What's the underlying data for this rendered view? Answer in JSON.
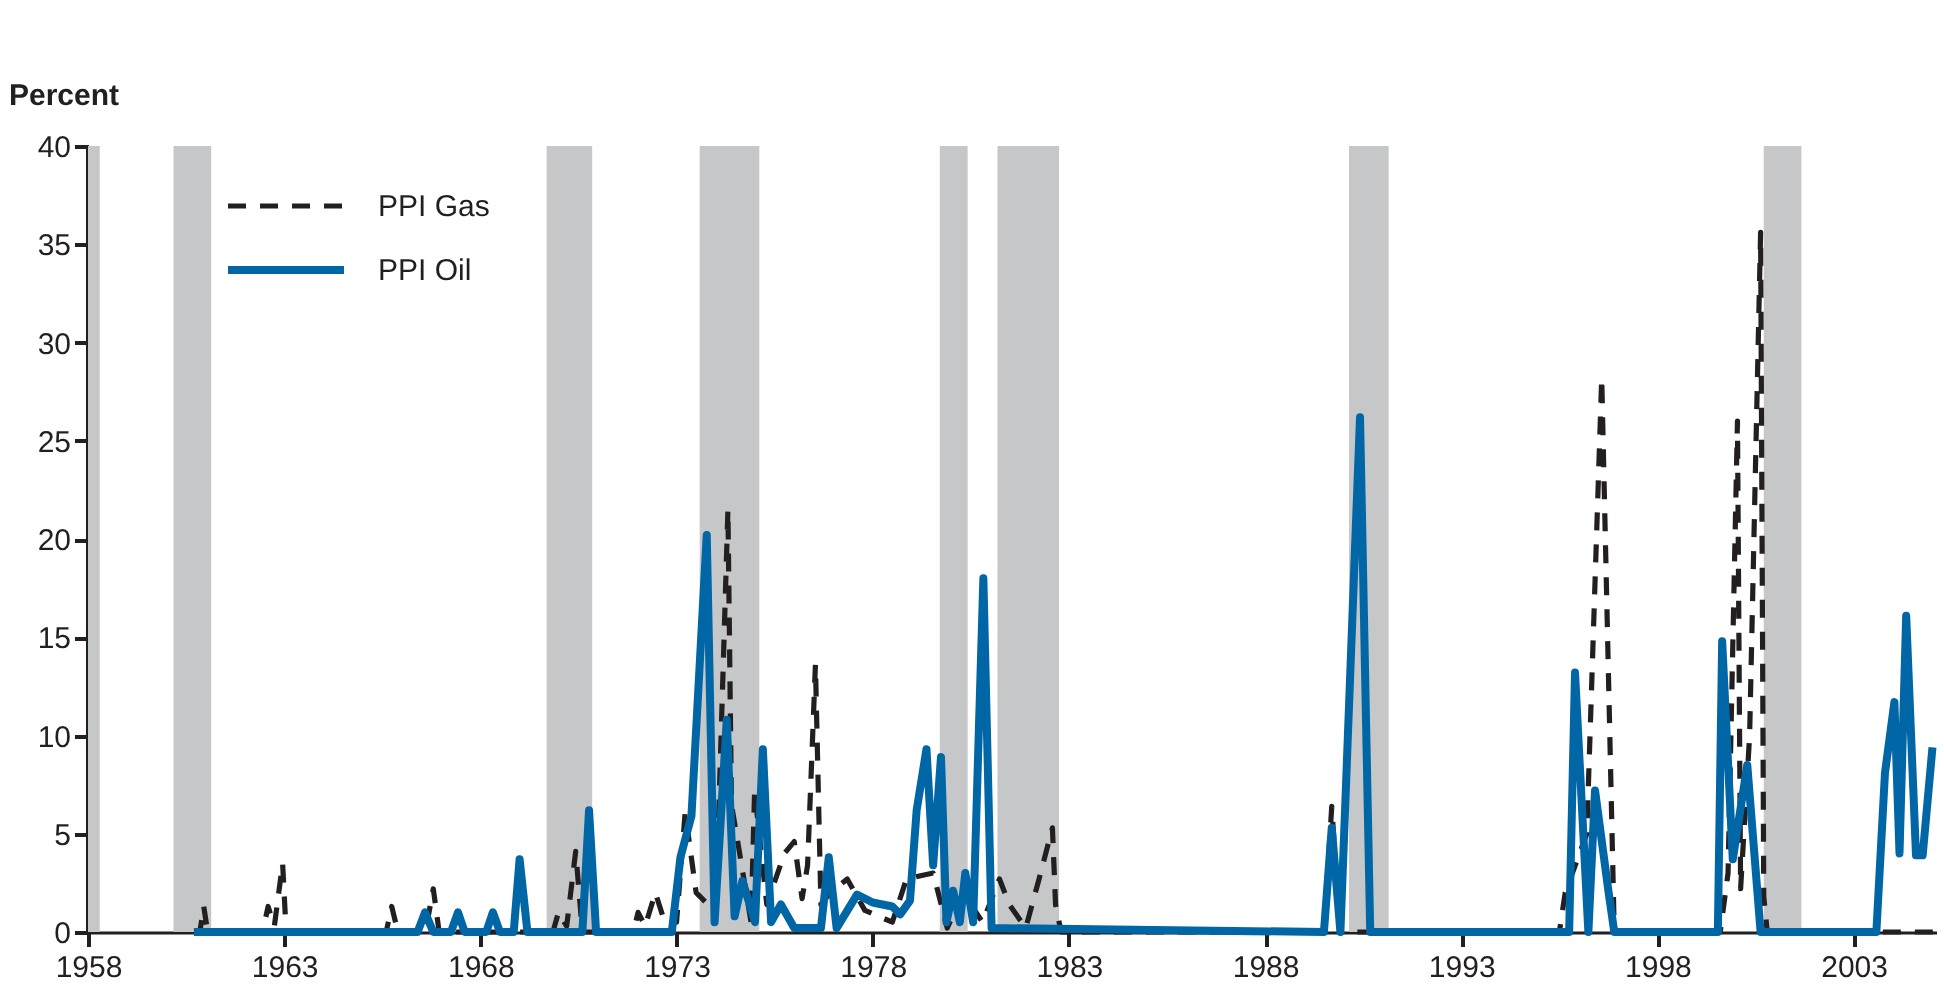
{
  "chart_data": {
    "type": "line",
    "ylabel": "Percent",
    "xlim": [
      1958,
      2005.1
    ],
    "xticks": [
      1958,
      1963,
      1968,
      1973,
      1978,
      1983,
      1988,
      1993,
      1998,
      2003
    ],
    "ylim": [
      0,
      40
    ],
    "yticks": [
      0,
      5,
      10,
      15,
      20,
      25,
      30,
      35,
      40
    ],
    "grid": false,
    "legend": "top left",
    "bands": [
      {
        "axis": "x",
        "from": 1958,
        "to": 1958.3,
        "color": "#c6c7c9"
      },
      {
        "axis": "x",
        "from": 1960.18,
        "to": 1961.14,
        "color": "#c6c7c9"
      },
      {
        "axis": "x",
        "from": 1969.69,
        "to": 1970.85,
        "color": "#c6c7c9"
      },
      {
        "axis": "x",
        "from": 1973.59,
        "to": 1975.11,
        "color": "#c6c7c9"
      },
      {
        "axis": "x",
        "from": 1979.71,
        "to": 1980.42,
        "color": "#c6c7c9"
      },
      {
        "axis": "x",
        "from": 1981.18,
        "to": 1982.75,
        "color": "#c6c7c9"
      },
      {
        "axis": "x",
        "from": 1990.14,
        "to": 1991.15,
        "color": "#c6c7c9"
      },
      {
        "axis": "x",
        "from": 2000.71,
        "to": 2001.67,
        "color": "#c6c7c9"
      }
    ],
    "series": [
      {
        "name": "PPI Gas",
        "color": "#231f20",
        "line_style": "dashed",
        "x": [
          1960.7,
          1960.85,
          1960.95,
          1961.05,
          1962.45,
          1962.59,
          1962.75,
          1962.96,
          1963.05,
          1965.6,
          1965.74,
          1965.9,
          1966.6,
          1966.8,
          1966.95,
          1969.85,
          1969.99,
          1970.2,
          1970.43,
          1970.6,
          1971.9,
          1972.02,
          1972.2,
          1972.46,
          1972.7,
          1973.0,
          1973.22,
          1973.5,
          1974.0,
          1974.31,
          1974.4,
          1974.9,
          1974.99,
          1975.3,
          1975.75,
          1976.0,
          1976.2,
          1976.34,
          1976.54,
          1976.68,
          1976.92,
          1977.35,
          1977.8,
          1978.5,
          1978.86,
          1979.54,
          1979.9,
          1980.3,
          1980.8,
          1981.23,
          1981.48,
          1981.9,
          1982.24,
          1982.58,
          1982.66,
          1982.8,
          1989.5,
          1989.7,
          1989.9,
          1995.5,
          1995.65,
          1996.2,
          1996.58,
          1996.9,
          1999.6,
          1999.8,
          2000.04,
          2000.12,
          2000.35,
          2000.63,
          2000.71,
          2000.8,
          2005.1
        ],
        "values": [
          0,
          0,
          1.3,
          0,
          0,
          1.3,
          0.3,
          3.5,
          0,
          0,
          1.3,
          0,
          0,
          2.2,
          0,
          0,
          1.0,
          0.3,
          4.1,
          0,
          0,
          1.0,
          0.3,
          2.0,
          0.5,
          0.5,
          6.1,
          2.0,
          1.0,
          21.5,
          6.5,
          0.5,
          7.2,
          1.4,
          4.0,
          4.6,
          1.7,
          3.4,
          13.6,
          1.4,
          2.0,
          2.7,
          1.1,
          0.5,
          2.7,
          3.0,
          0.2,
          2.0,
          0.5,
          2.7,
          1.4,
          0.2,
          2.7,
          5.3,
          1.4,
          0,
          0,
          6.4,
          0,
          0,
          2.0,
          5.0,
          28.2,
          0,
          0,
          3.0,
          26.0,
          2.2,
          10.0,
          35.6,
          1.8,
          0,
          0
        ]
      },
      {
        "name": "PPI Oil",
        "color": "#0066a6",
        "line_style": "solid",
        "x": [
          1960.7,
          1966.4,
          1966.59,
          1966.8,
          1967.25,
          1967.43,
          1967.6,
          1968.15,
          1968.32,
          1968.5,
          1968.85,
          1969.0,
          1969.2,
          1970.6,
          1970.77,
          1970.95,
          1972.88,
          1973.1,
          1973.38,
          1973.77,
          1973.97,
          1974.28,
          1974.48,
          1974.68,
          1975.0,
          1975.2,
          1975.41,
          1975.66,
          1976.0,
          1976.68,
          1976.88,
          1977.08,
          1977.6,
          1978.0,
          1978.5,
          1978.7,
          1978.95,
          1979.12,
          1979.37,
          1979.54,
          1979.74,
          1979.88,
          1980.05,
          1980.22,
          1980.36,
          1980.56,
          1980.82,
          1981.03,
          1989.5,
          1989.7,
          1989.92,
          1990.42,
          1990.68,
          1995.75,
          1995.9,
          1996.24,
          1996.41,
          1996.75,
          1996.9,
          1999.54,
          1999.65,
          1999.92,
          2000.29,
          2000.63,
          2003.58,
          2003.8,
          2004.04,
          2004.17,
          2004.34,
          2004.59,
          2004.76,
          2005.01
        ],
        "values": [
          0,
          0,
          1.0,
          0,
          0,
          1.0,
          0,
          0,
          1.0,
          0,
          0,
          3.7,
          0,
          0,
          6.2,
          0,
          0,
          3.8,
          5.9,
          20.2,
          0.5,
          10.8,
          0.8,
          2.6,
          0.5,
          9.3,
          0.5,
          1.4,
          0.2,
          0.2,
          3.8,
          0.2,
          1.9,
          1.5,
          1.3,
          0.9,
          1.6,
          6.2,
          9.3,
          3.4,
          8.9,
          0.5,
          2.1,
          0.5,
          3.0,
          0.5,
          18.0,
          0.2,
          0,
          5.3,
          0,
          26.2,
          0,
          0,
          13.2,
          0,
          7.2,
          2.1,
          0,
          0,
          14.8,
          3.7,
          8.5,
          0,
          0,
          8.1,
          11.7,
          4.0,
          16.1,
          3.9,
          3.9,
          9.4
        ]
      }
    ]
  }
}
